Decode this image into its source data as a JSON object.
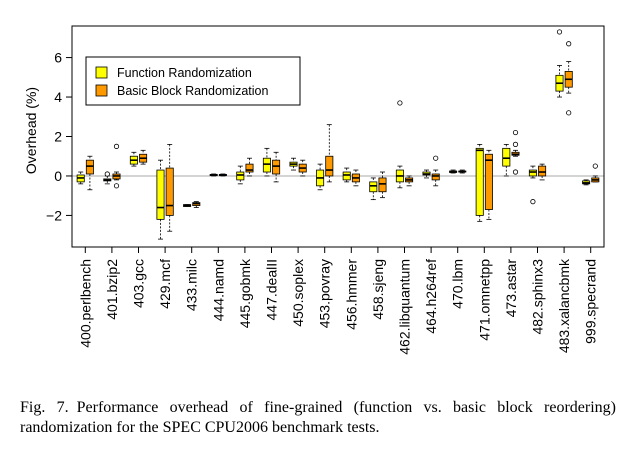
{
  "chart_data": {
    "type": "boxplot",
    "title": "",
    "xlabel": "",
    "ylabel": "Overhead (%)",
    "ylim": [
      -3.6,
      7.6
    ],
    "yticks": [
      -2,
      0,
      2,
      4,
      6
    ],
    "reference_line": 0,
    "legend_position": "top-left",
    "categories": [
      "400.perlbench",
      "401.bzip2",
      "403.gcc",
      "429.mcf",
      "433.milc",
      "444.namd",
      "445.gobmk",
      "447.dealII",
      "450.soplex",
      "453.povray",
      "456.hmmer",
      "458.sjeng",
      "462.libquantum",
      "464.h264ref",
      "470.lbm",
      "471.omnetpp",
      "473.astar",
      "482.sphinx3",
      "483.xalancbmk",
      "999.specrand"
    ],
    "series": [
      {
        "name": "Function Randomization",
        "color": "#ffff00",
        "boxes": [
          {
            "whislo": -0.4,
            "q1": -0.3,
            "med": -0.1,
            "q3": 0.05,
            "whishi": 0.2,
            "fliers": []
          },
          {
            "whislo": -0.4,
            "q1": -0.25,
            "med": -0.2,
            "q3": -0.15,
            "whishi": 0.0,
            "fliers": [
              0.1
            ]
          },
          {
            "whislo": 0.5,
            "q1": 0.6,
            "med": 0.8,
            "q3": 1.0,
            "whishi": 1.2,
            "fliers": []
          },
          {
            "whislo": -3.2,
            "q1": -2.2,
            "med": -1.6,
            "q3": 0.3,
            "whishi": 0.8,
            "fliers": []
          },
          {
            "whislo": -1.55,
            "q1": -1.55,
            "med": -1.5,
            "q3": -1.45,
            "whishi": -1.45,
            "fliers": []
          },
          {
            "whislo": 0.0,
            "q1": 0.02,
            "med": 0.05,
            "q3": 0.08,
            "whishi": 0.1,
            "fliers": []
          },
          {
            "whislo": -0.4,
            "q1": -0.2,
            "med": 0.05,
            "q3": 0.2,
            "whishi": 0.5,
            "fliers": []
          },
          {
            "whislo": 0.0,
            "q1": 0.2,
            "med": 0.6,
            "q3": 0.9,
            "whishi": 1.4,
            "fliers": []
          },
          {
            "whislo": 0.3,
            "q1": 0.5,
            "med": 0.6,
            "q3": 0.7,
            "whishi": 0.9,
            "fliers": []
          },
          {
            "whislo": -0.7,
            "q1": -0.5,
            "med": -0.1,
            "q3": 0.3,
            "whishi": 0.6,
            "fliers": []
          },
          {
            "whislo": -0.3,
            "q1": -0.2,
            "med": 0.05,
            "q3": 0.2,
            "whishi": 0.4,
            "fliers": []
          },
          {
            "whislo": -1.2,
            "q1": -0.8,
            "med": -0.5,
            "q3": -0.3,
            "whishi": -0.1,
            "fliers": []
          },
          {
            "whislo": -0.6,
            "q1": -0.3,
            "med": 0.0,
            "q3": 0.3,
            "whishi": 0.5,
            "fliers": [
              3.7
            ]
          },
          {
            "whislo": -0.1,
            "q1": 0.05,
            "med": 0.1,
            "q3": 0.2,
            "whishi": 0.3,
            "fliers": []
          },
          {
            "whislo": 0.15,
            "q1": 0.18,
            "med": 0.2,
            "q3": 0.25,
            "whishi": 0.3,
            "fliers": []
          },
          {
            "whislo": -2.3,
            "q1": -2.0,
            "med": 1.3,
            "q3": 1.4,
            "whishi": 1.6,
            "fliers": []
          },
          {
            "whislo": 0.0,
            "q1": 0.5,
            "med": 0.9,
            "q3": 1.4,
            "whishi": 1.6,
            "fliers": []
          },
          {
            "whislo": -0.1,
            "q1": 0.0,
            "med": 0.2,
            "q3": 0.3,
            "whishi": 0.5,
            "fliers": [
              -1.3
            ]
          },
          {
            "whislo": 4.0,
            "q1": 4.3,
            "med": 4.7,
            "q3": 5.1,
            "whishi": 5.6,
            "fliers": [
              7.3
            ]
          },
          {
            "whislo": -0.45,
            "q1": -0.4,
            "med": -0.35,
            "q3": -0.25,
            "whishi": -0.2,
            "fliers": []
          }
        ]
      },
      {
        "name": "Basic Block Randomization",
        "color": "#ff9900",
        "boxes": [
          {
            "whislo": -0.7,
            "q1": 0.1,
            "med": 0.5,
            "q3": 0.8,
            "whishi": 1.0,
            "fliers": []
          },
          {
            "whislo": -0.2,
            "q1": -0.15,
            "med": 0.0,
            "q3": 0.1,
            "whishi": 0.2,
            "fliers": [
              1.5,
              -0.5
            ]
          },
          {
            "whislo": 0.6,
            "q1": 0.7,
            "med": 0.9,
            "q3": 1.1,
            "whishi": 1.3,
            "fliers": []
          },
          {
            "whislo": -2.8,
            "q1": -2.0,
            "med": -1.5,
            "q3": 0.4,
            "whishi": 1.6,
            "fliers": []
          },
          {
            "whislo": -1.6,
            "q1": -1.5,
            "med": -1.4,
            "q3": -1.35,
            "whishi": -1.3,
            "fliers": []
          },
          {
            "whislo": 0.0,
            "q1": 0.02,
            "med": 0.05,
            "q3": 0.08,
            "whishi": 0.1,
            "fliers": []
          },
          {
            "whislo": 0.0,
            "q1": 0.2,
            "med": 0.3,
            "q3": 0.6,
            "whishi": 0.9,
            "fliers": []
          },
          {
            "whislo": -0.3,
            "q1": 0.1,
            "med": 0.5,
            "q3": 0.8,
            "whishi": 1.2,
            "fliers": []
          },
          {
            "whislo": 0.0,
            "q1": 0.2,
            "med": 0.4,
            "q3": 0.6,
            "whishi": 0.8,
            "fliers": []
          },
          {
            "whislo": -0.3,
            "q1": 0.0,
            "med": 0.3,
            "q3": 1.0,
            "whishi": 2.6,
            "fliers": []
          },
          {
            "whislo": -0.5,
            "q1": -0.3,
            "med": -0.1,
            "q3": 0.1,
            "whishi": 0.3,
            "fliers": []
          },
          {
            "whislo": -1.1,
            "q1": -0.8,
            "med": -0.4,
            "q3": -0.1,
            "whishi": 0.2,
            "fliers": []
          },
          {
            "whislo": -0.5,
            "q1": -0.3,
            "med": -0.2,
            "q3": -0.1,
            "whishi": 0.0,
            "fliers": []
          },
          {
            "whislo": -0.5,
            "q1": -0.2,
            "med": 0.0,
            "q3": 0.1,
            "whishi": 0.3,
            "fliers": [
              0.9
            ]
          },
          {
            "whislo": 0.15,
            "q1": 0.2,
            "med": 0.22,
            "q3": 0.25,
            "whishi": 0.3,
            "fliers": []
          },
          {
            "whislo": -2.2,
            "q1": -1.7,
            "med": 0.8,
            "q3": 1.1,
            "whishi": 1.3,
            "fliers": []
          },
          {
            "whislo": 1.0,
            "q1": 1.05,
            "med": 1.1,
            "q3": 1.2,
            "whishi": 1.3,
            "fliers": [
              1.6,
              2.2,
              0.2
            ]
          },
          {
            "whislo": -0.2,
            "q1": 0.0,
            "med": 0.2,
            "q3": 0.5,
            "whishi": 0.6,
            "fliers": []
          },
          {
            "whislo": 4.2,
            "q1": 4.5,
            "med": 4.9,
            "q3": 5.3,
            "whishi": 5.8,
            "fliers": [
              6.7,
              3.2
            ]
          },
          {
            "whislo": -0.3,
            "q1": -0.3,
            "med": -0.2,
            "q3": -0.1,
            "whishi": 0.0,
            "fliers": [
              0.5
            ]
          }
        ]
      }
    ]
  },
  "caption": {
    "label": "Fig. 7.",
    "text": "Performance overhead of fine-grained (function vs. basic block reordering) randomization for the SPEC CPU2006 benchmark tests."
  }
}
